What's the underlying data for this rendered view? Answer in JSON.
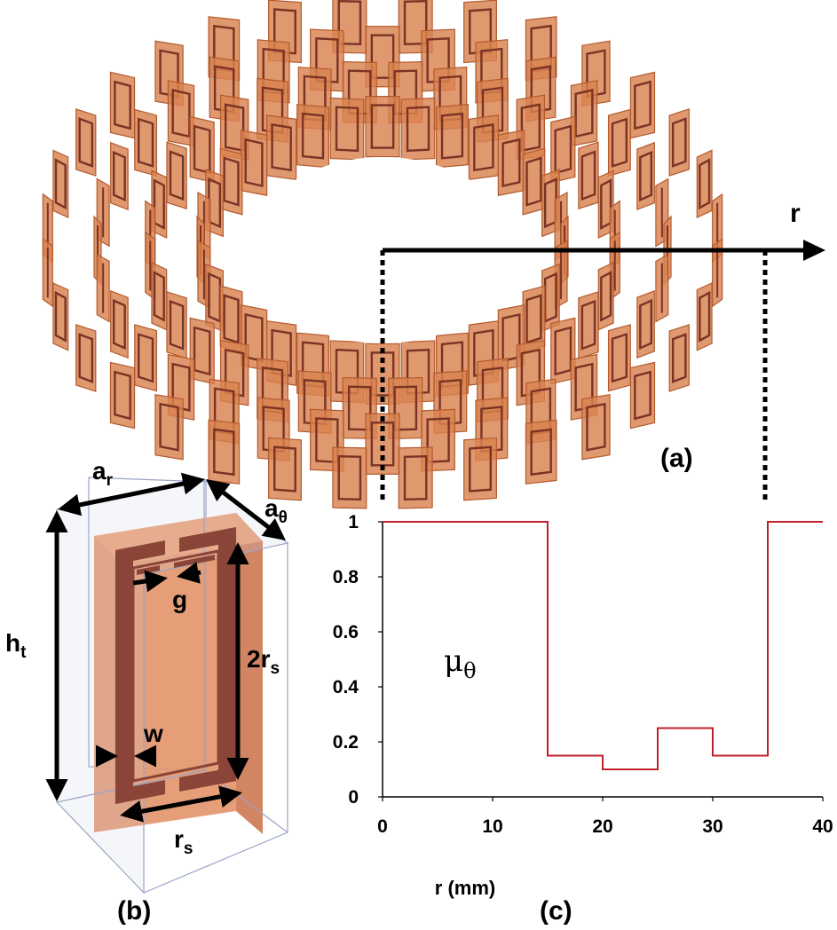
{
  "panel_labels": {
    "a": "(a)",
    "b": "(b)",
    "c": "(c)"
  },
  "ring": {
    "axis_label": "r",
    "ring_count": 4,
    "cells_per_ring": 32,
    "colors": {
      "fill": "#d9824f",
      "edge": "#b35a2d",
      "ring": "#7a3324",
      "highlight": "#f0a472"
    }
  },
  "unit_cell": {
    "labels": {
      "a_r": {
        "main": "a",
        "sub": "r"
      },
      "a_theta": {
        "main": "a",
        "sub": "θ"
      },
      "h_t": {
        "main": "h",
        "sub": "t"
      },
      "two_r_s": {
        "main": "2r",
        "sub": "s"
      },
      "g": {
        "main": "g",
        "sub": ""
      },
      "w": {
        "main": "w",
        "sub": ""
      },
      "r_s": {
        "main": "r",
        "sub": "s"
      }
    },
    "colors": {
      "box": "#9aa3c8",
      "substrate": "#e3946a",
      "ring": "#8a4538"
    }
  },
  "chart_data": {
    "type": "line",
    "step": true,
    "series": [
      {
        "name": "",
        "x": [
          0,
          15,
          15,
          20,
          20,
          25,
          25,
          30,
          30,
          35,
          35,
          40
        ],
        "y": [
          1,
          1,
          0.15,
          0.15,
          0.1,
          0.1,
          0.25,
          0.25,
          0.15,
          0.15,
          1,
          1
        ],
        "color": "#c0202a"
      }
    ],
    "annotation": {
      "main": "μ",
      "sub": "θ"
    },
    "xlabel": "r (mm)",
    "ylabel": "",
    "xlim": [
      0,
      40
    ],
    "ylim": [
      0,
      1
    ],
    "xticks": [
      "0",
      "10",
      "20",
      "30",
      "40"
    ],
    "yticks": [
      "0",
      "0.2",
      "0.4",
      "0.6",
      "0.8",
      "1"
    ],
    "grid": false
  }
}
